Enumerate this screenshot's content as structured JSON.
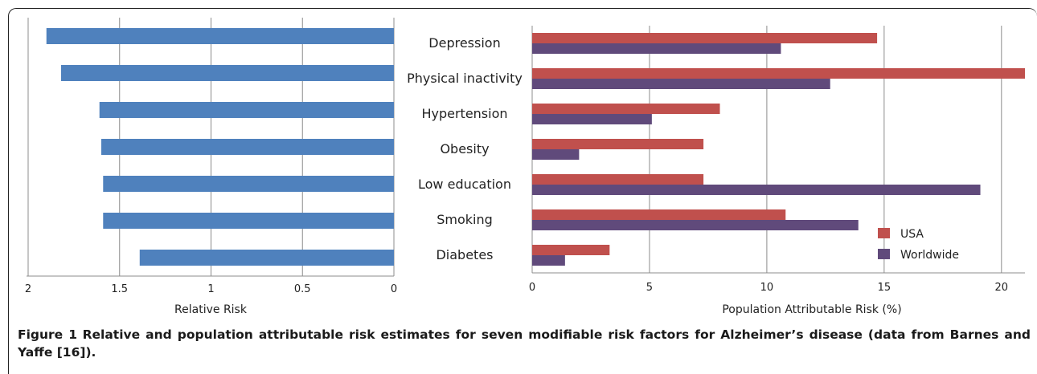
{
  "chart_data": [
    {
      "type": "bar",
      "orientation": "horizontal",
      "x_axis_reversed": true,
      "categories": [
        "Depression",
        "Physical inactivity",
        "Hypertension",
        "Obesity",
        "Low education",
        "Smoking",
        "Diabetes"
      ],
      "values": [
        1.9,
        1.82,
        1.61,
        1.6,
        1.59,
        1.59,
        1.39
      ],
      "xlabel": "Relative Risk",
      "xlim": [
        0,
        2
      ],
      "ticks": [
        "2",
        "1.5",
        "1",
        "0.5",
        "0"
      ],
      "grid": true,
      "colors": {
        "bar": "#4f81bd"
      }
    },
    {
      "type": "bar",
      "orientation": "horizontal",
      "categories": [
        "Depression",
        "Physical inactivity",
        "Hypertension",
        "Obesity",
        "Low education",
        "Smoking",
        "Diabetes"
      ],
      "series": [
        {
          "name": "USA",
          "values": [
            14.7,
            21.0,
            8.0,
            7.3,
            7.3,
            10.8,
            3.3
          ]
        },
        {
          "name": "Worldwide",
          "values": [
            10.6,
            12.7,
            5.1,
            2.0,
            19.1,
            13.9,
            1.4
          ]
        }
      ],
      "xlabel": "Population Attributable Risk (%)",
      "xlim": [
        0,
        21
      ],
      "ticks": [
        "0",
        "5",
        "10",
        "15",
        "20"
      ],
      "grid": true,
      "legend": "bottom-right",
      "colors": {
        "USA": "#c0504d",
        "Worldwide": "#604a7b"
      }
    }
  ],
  "caption": {
    "label": "Figure 1",
    "text": "Relative and population attributable risk estimates for seven modifiable risk factors for Alzheimer’s disease (data from Barnes and Yaffe [16])."
  }
}
